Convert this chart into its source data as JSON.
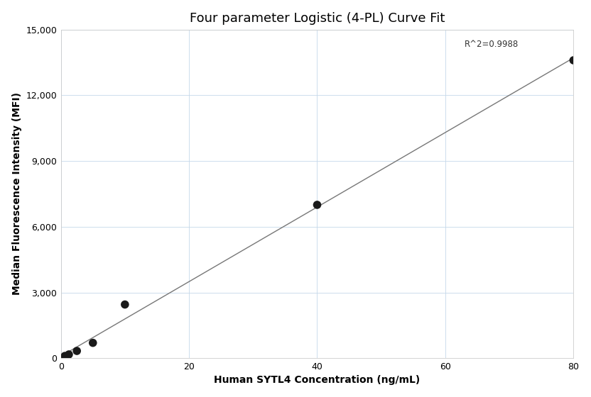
{
  "title": "Four parameter Logistic (4-PL) Curve Fit",
  "xlabel": "Human SYTL4 Concentration (ng/mL)",
  "ylabel": "Median Fluorescence Intensity (MFI)",
  "x_data": [
    0.625,
    1.25,
    2.5,
    5.0,
    10.0,
    40.0,
    80.0
  ],
  "y_data": [
    100,
    170,
    330,
    700,
    2450,
    7000,
    13600
  ],
  "r_squared": "R^2=0.9988",
  "xlim": [
    0,
    80
  ],
  "ylim": [
    0,
    15000
  ],
  "xticks": [
    0,
    20,
    40,
    60,
    80
  ],
  "yticks": [
    0,
    3000,
    6000,
    9000,
    12000,
    15000
  ],
  "dot_color": "#1a1a1a",
  "dot_size": 70,
  "line_color": "#777777",
  "line_width": 1.0,
  "grid_color": "#c5d8ea",
  "grid_alpha": 1.0,
  "background_color": "#ffffff",
  "title_fontsize": 13,
  "label_fontsize": 10,
  "tick_fontsize": 9,
  "annotation_fontsize": 8.5
}
